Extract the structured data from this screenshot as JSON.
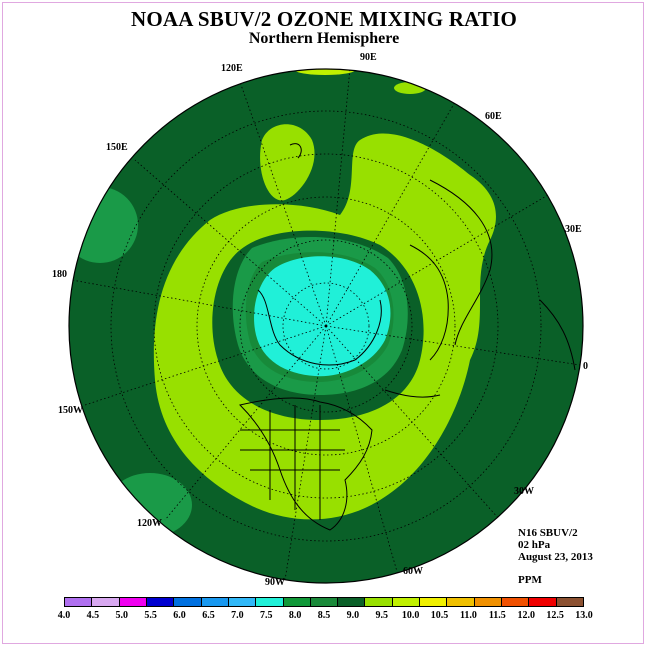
{
  "title": "NOAA SBUV/2 OZONE MIXING RATIO",
  "subtitle": "Northern Hemisphere",
  "info": {
    "instrument": "N16 SBUV/2",
    "level": "02 hPa",
    "date": "August 23, 2013",
    "units": "PPM"
  },
  "longitude_labels": [
    "120E",
    "90E",
    "60E",
    "30E",
    "180",
    "0",
    "150E",
    "150W",
    "30W",
    "120W",
    "90W",
    "60W"
  ],
  "colorbar": {
    "ticks": [
      "4.0",
      "4.5",
      "5.0",
      "5.5",
      "6.0",
      "6.5",
      "7.0",
      "7.5",
      "8.0",
      "8.5",
      "9.0",
      "9.5",
      "10.0",
      "10.5",
      "11.0",
      "11.5",
      "12.0",
      "12.5",
      "13.0"
    ],
    "colors": [
      "#b070f0",
      "#d8a8f0",
      "#f000f0",
      "#0000d0",
      "#0070e0",
      "#1898f0",
      "#30b8f8",
      "#20f0d8",
      "#109838",
      "#1a8a3a",
      "#0a6028",
      "#98e000",
      "#c0f000",
      "#f0f000",
      "#f0c000",
      "#f09000",
      "#f05000",
      "#f00000",
      "#8b5030"
    ]
  },
  "map": {
    "background_color": "#0a6028",
    "contour_colors": {
      "ring_9_5": "#98e000",
      "band_8_5_9": "#178a3a",
      "core_8_5": "#1a9a48",
      "center_8": "#20f0d8",
      "edge_9_5": "#c0f000"
    }
  }
}
